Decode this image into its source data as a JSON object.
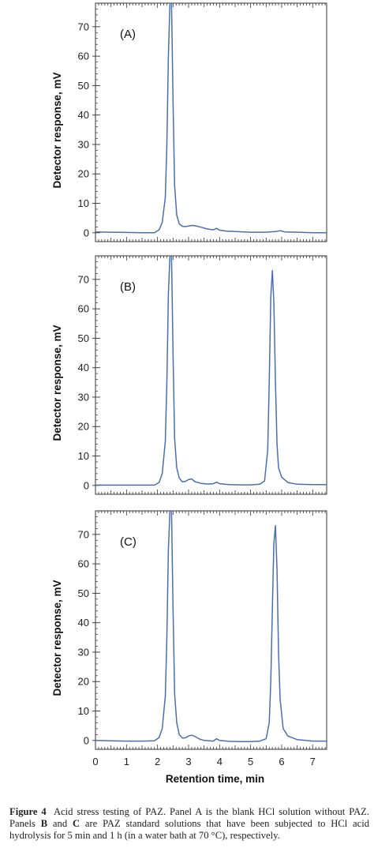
{
  "chart_data": [
    {
      "type": "line",
      "panel_label": "(A)",
      "ylabel": "Detector response, mV",
      "xlabel": "",
      "ylim": [
        -3,
        78
      ],
      "yticks": [
        0,
        10,
        20,
        30,
        40,
        50,
        60,
        70
      ],
      "xlim": [
        0,
        7.45
      ],
      "series": [
        {
          "x": [
            0,
            0.5,
            1.0,
            1.5,
            1.9,
            2.05,
            2.15,
            2.25,
            2.3,
            2.35,
            2.4,
            2.45,
            2.5,
            2.55,
            2.62,
            2.7,
            2.8,
            2.9,
            3.0,
            3.1,
            3.2,
            3.4,
            3.6,
            3.8,
            3.9,
            4.0,
            4.2,
            4.5,
            5.0,
            5.5,
            5.8,
            5.95,
            6.1,
            6.5,
            7.0,
            7.45
          ],
          "y": [
            0.3,
            0.2,
            0.1,
            0.0,
            0.0,
            1.0,
            3.5,
            12,
            30,
            60,
            78,
            78,
            45,
            16,
            6,
            3.0,
            2.2,
            2.1,
            2.3,
            2.5,
            2.4,
            1.9,
            1.3,
            1.0,
            1.5,
            0.9,
            0.6,
            0.4,
            0.2,
            0.2,
            0.4,
            0.7,
            0.3,
            0.2,
            0.0,
            0.0
          ]
        }
      ]
    },
    {
      "type": "line",
      "panel_label": "(B)",
      "ylabel": "Detector response, mV",
      "xlabel": "",
      "ylim": [
        -3,
        78
      ],
      "yticks": [
        0,
        10,
        20,
        30,
        40,
        50,
        60,
        70
      ],
      "xlim": [
        0,
        7.45
      ],
      "series": [
        {
          "x": [
            0,
            0.5,
            1.0,
            1.5,
            1.9,
            2.05,
            2.15,
            2.25,
            2.3,
            2.35,
            2.4,
            2.45,
            2.5,
            2.55,
            2.62,
            2.7,
            2.8,
            2.9,
            3.0,
            3.1,
            3.2,
            3.4,
            3.6,
            3.8,
            3.9,
            4.0,
            4.3,
            4.7,
            5.0,
            5.3,
            5.45,
            5.55,
            5.6,
            5.65,
            5.7,
            5.75,
            5.8,
            5.85,
            5.9,
            6.0,
            6.2,
            6.5,
            7.0,
            7.45
          ],
          "y": [
            0.1,
            0.1,
            0.1,
            0.1,
            0.1,
            1.0,
            4,
            15,
            35,
            65,
            78,
            78,
            45,
            16,
            6,
            2.5,
            1.2,
            1.4,
            2.0,
            2.2,
            1.3,
            0.7,
            0.5,
            0.6,
            1.1,
            0.6,
            0.3,
            0.2,
            0.2,
            0.4,
            1.5,
            12,
            35,
            64,
            73,
            62,
            35,
            14,
            6,
            2.8,
            1.0,
            0.4,
            0.3,
            0.3
          ]
        }
      ]
    },
    {
      "type": "line",
      "panel_label": "(C)",
      "ylabel": "Detector response, mV",
      "xlabel": "Retention time, min",
      "ylim": [
        -3,
        78
      ],
      "yticks": [
        0,
        10,
        20,
        30,
        40,
        50,
        60,
        70
      ],
      "xlim": [
        0,
        7.45
      ],
      "xticks": [
        0,
        1,
        2,
        3,
        4,
        5,
        6,
        7
      ],
      "series": [
        {
          "x": [
            0,
            0.5,
            1.0,
            1.5,
            1.9,
            2.05,
            2.15,
            2.25,
            2.3,
            2.35,
            2.4,
            2.45,
            2.5,
            2.55,
            2.62,
            2.7,
            2.8,
            2.9,
            3.0,
            3.1,
            3.2,
            3.35,
            3.5,
            3.8,
            3.9,
            4.0,
            4.3,
            4.7,
            5.0,
            5.3,
            5.5,
            5.6,
            5.65,
            5.7,
            5.75,
            5.8,
            5.85,
            5.9,
            5.95,
            6.05,
            6.2,
            6.5,
            7.0,
            7.45
          ],
          "y": [
            0.0,
            -0.1,
            -0.2,
            -0.2,
            -0.1,
            1.0,
            4,
            15,
            35,
            65,
            78,
            78,
            45,
            16,
            6,
            2.0,
            0.8,
            0.9,
            1.5,
            1.8,
            1.4,
            0.5,
            0.0,
            -0.2,
            0.6,
            0.0,
            -0.3,
            -0.4,
            -0.4,
            -0.2,
            0.6,
            6,
            20,
            45,
            67,
            73,
            58,
            30,
            14,
            4,
            1.5,
            0.3,
            -0.2,
            -0.2
          ]
        }
      ]
    }
  ],
  "caption": {
    "label": "Figure 4",
    "text_before_B": "Acid stress testing of PAZ. Panel A is the blank HCl solution without PAZ. Panels ",
    "B": "B",
    "and": " and ",
    "C": "C",
    "text_after": " are PAZ standard solutions that have been subjected to HCl acid hydrolysis for 5 min and 1 h (in a water bath at 70 °C), respectively."
  },
  "colors": {
    "trace": "#4a6fb0",
    "frame": "#333333"
  }
}
